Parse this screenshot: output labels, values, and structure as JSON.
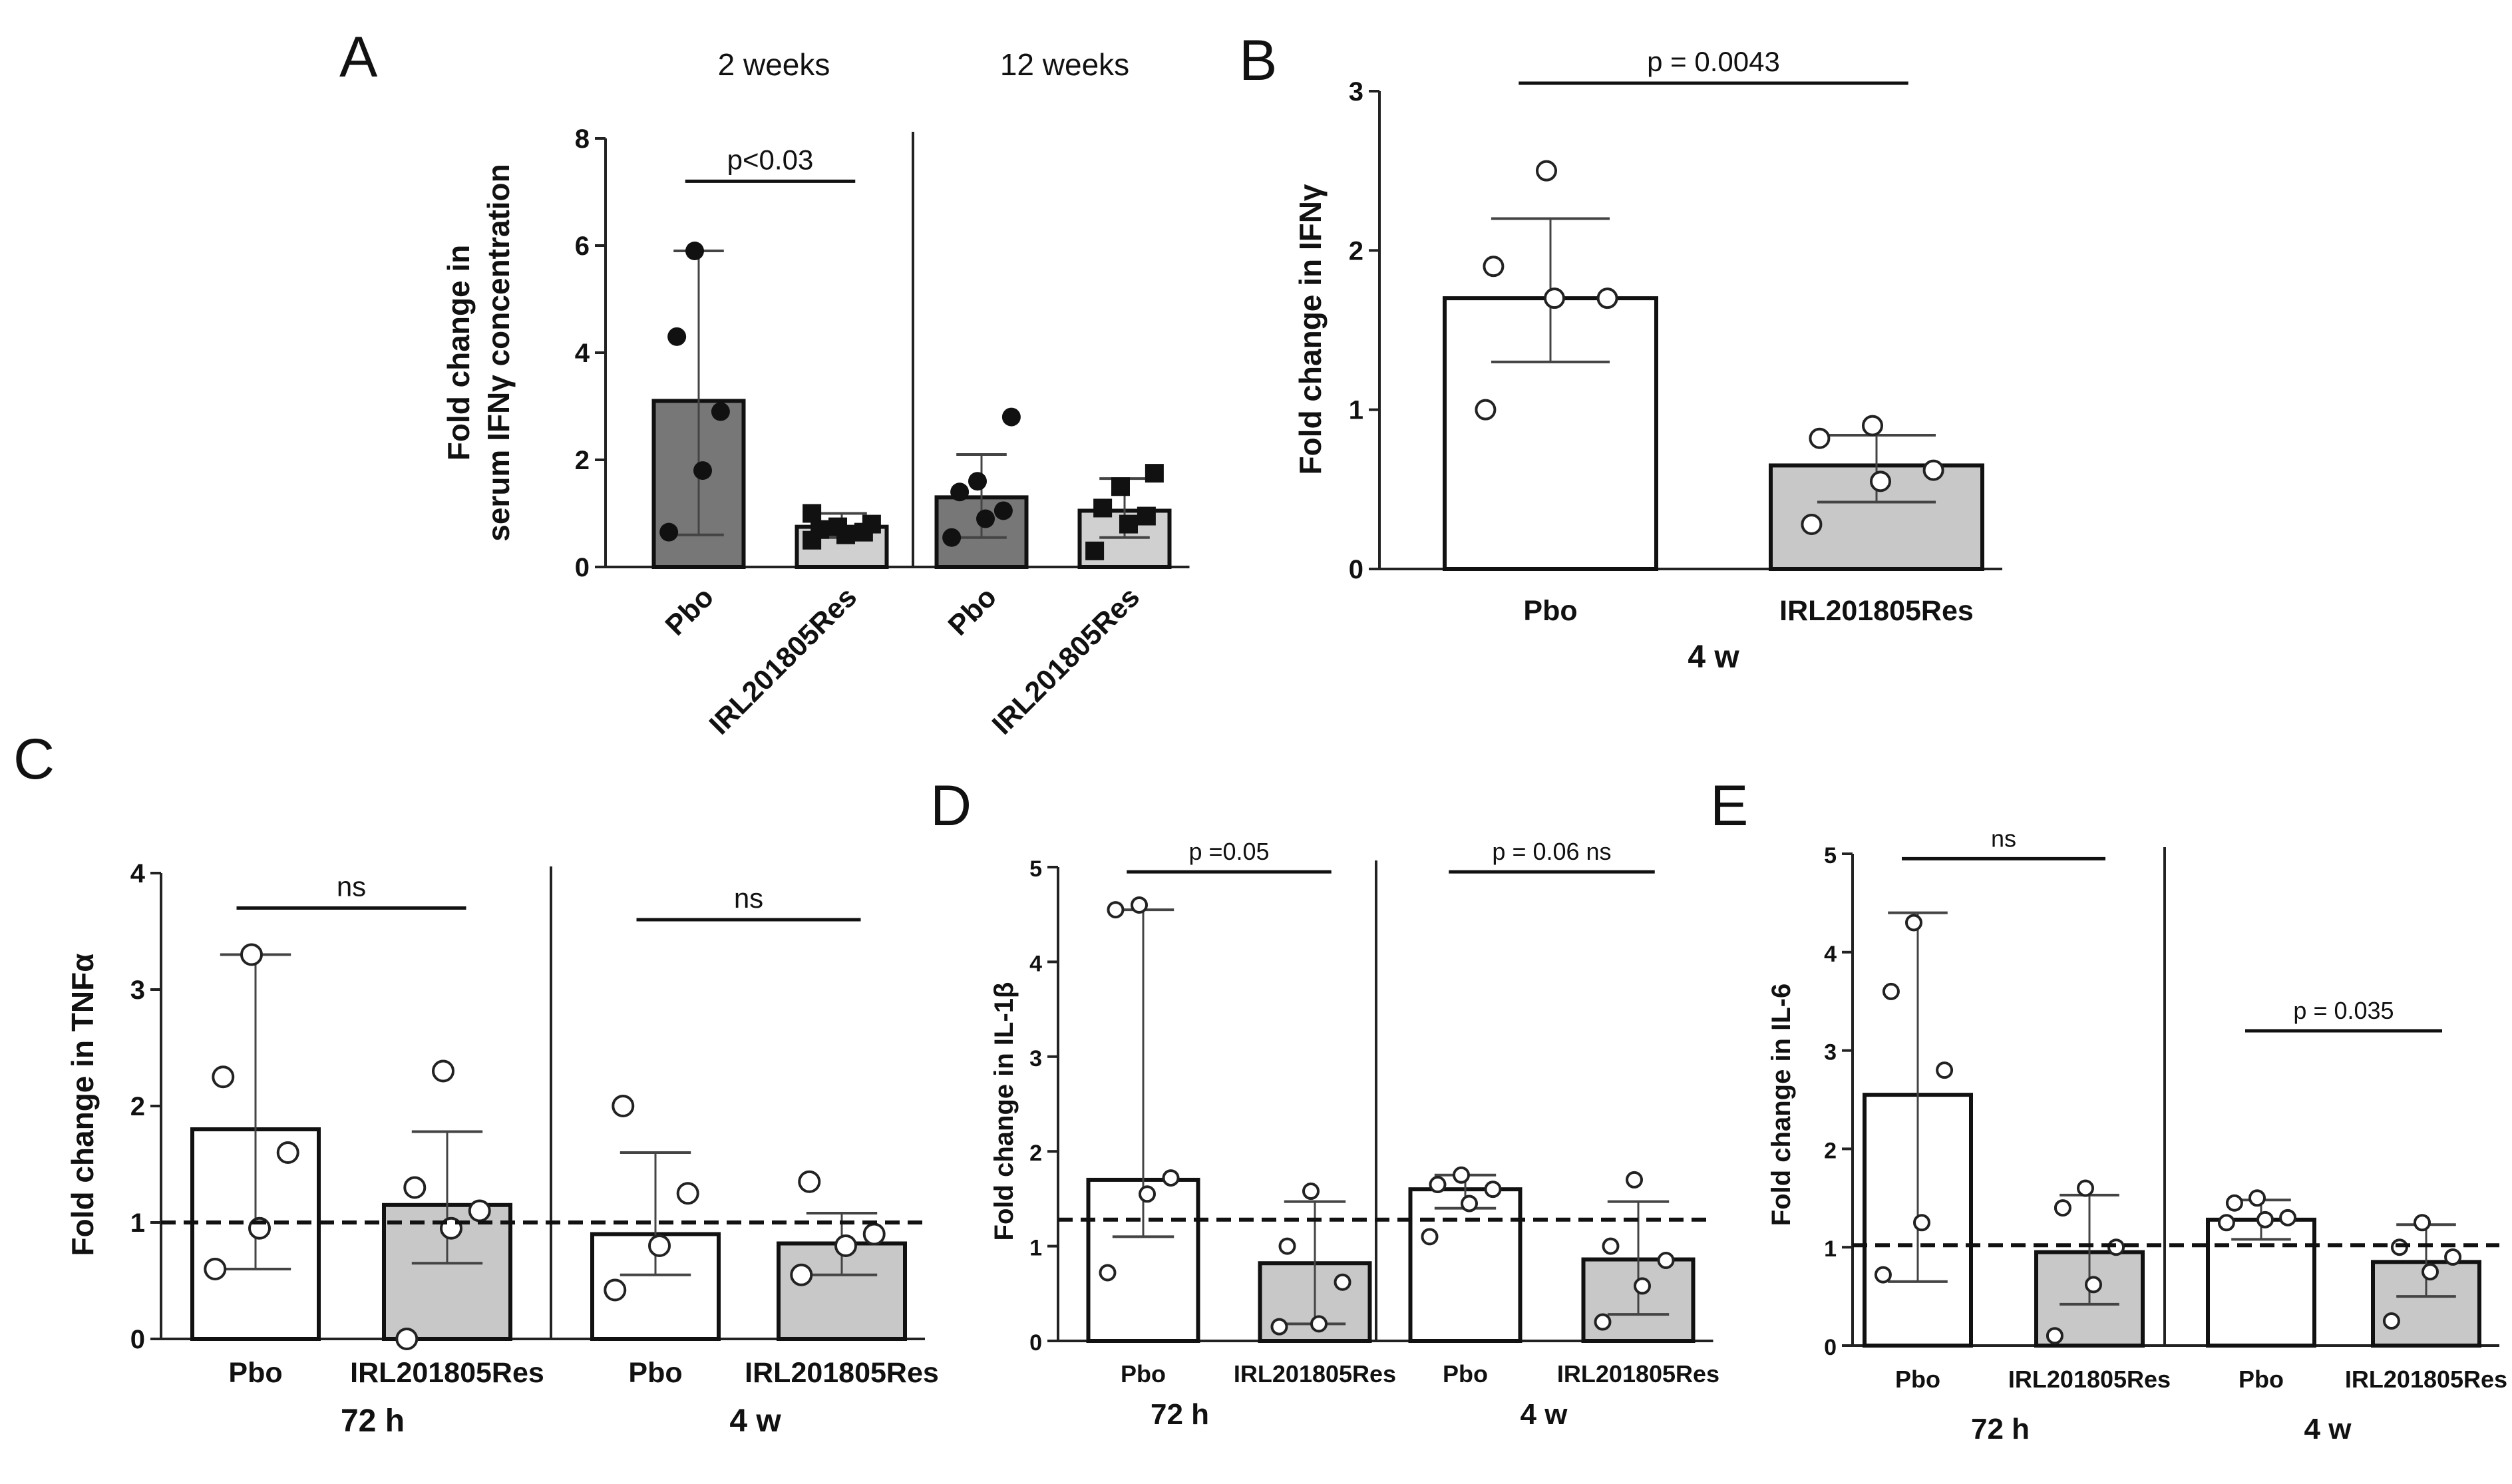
{
  "chart_data": [
    {
      "panel": "A",
      "type": "bar",
      "ylabel": [
        "Fold change in",
        "serum IFNγ concentration"
      ],
      "ylim": [
        0,
        8
      ],
      "yticks": [
        0,
        2,
        4,
        6,
        8
      ],
      "column_headers": [
        "2 weeks",
        "12 weeks"
      ],
      "categories": [
        "Pbo",
        "IRL201805Res",
        "Pbo",
        "IRL201805Res"
      ],
      "bar_colors": [
        "#777777",
        "#d0d0d0",
        "#777777",
        "#d0d0d0"
      ],
      "marker_styles": [
        "filled-circle",
        "filled-square",
        "filled-circle",
        "filled-square"
      ],
      "values": [
        3.1,
        0.75,
        1.3,
        1.05
      ],
      "error_low": [
        0.6,
        0.55,
        0.55,
        0.55
      ],
      "error_high": [
        5.9,
        1.0,
        2.1,
        1.65
      ],
      "points": [
        [
          0.65,
          1.8,
          2.9,
          4.3,
          5.9
        ],
        [
          0.5,
          0.6,
          0.65,
          0.7,
          0.75,
          0.8,
          1.0
        ],
        [
          0.55,
          0.9,
          1.05,
          1.4,
          1.6,
          2.8
        ],
        [
          0.3,
          0.8,
          0.95,
          1.1,
          1.5,
          1.75
        ]
      ],
      "significance": [
        {
          "from": 0,
          "to": 1,
          "label": "p<0.03",
          "y": 7.2
        }
      ],
      "separator_after": 1
    },
    {
      "panel": "B",
      "type": "bar",
      "ylabel": [
        "Fold change in IFNγ"
      ],
      "ylim": [
        0,
        3
      ],
      "yticks": [
        0,
        1,
        2,
        3
      ],
      "categories": [
        "Pbo",
        "IRL201805Res"
      ],
      "group_labels": [
        "4 w"
      ],
      "bar_colors": [
        "#ffffff",
        "#c8c8c8"
      ],
      "marker_styles": [
        "open-circle",
        "open-circle"
      ],
      "values": [
        1.7,
        0.65
      ],
      "error_low": [
        1.3,
        0.42
      ],
      "error_high": [
        2.2,
        0.84
      ],
      "points": [
        [
          1.0,
          1.7,
          1.7,
          1.9,
          2.5
        ],
        [
          0.28,
          0.55,
          0.62,
          0.82,
          0.9
        ]
      ],
      "significance": [
        {
          "from": 0,
          "to": 1,
          "label": "p = 0.0043",
          "y": 3.05
        }
      ]
    },
    {
      "panel": "C",
      "type": "bar",
      "ylabel": [
        "Fold change in TNFα"
      ],
      "ylim": [
        0,
        4
      ],
      "yticks": [
        0,
        1,
        2,
        3,
        4
      ],
      "reference_line": 1,
      "categories": [
        "Pbo",
        "IRL201805Res",
        "Pbo",
        "IRL201805Res"
      ],
      "group_labels": [
        "72 h",
        "4 w"
      ],
      "bar_colors": [
        "#ffffff",
        "#c8c8c8",
        "#ffffff",
        "#c8c8c8"
      ],
      "marker_styles": [
        "open-circle",
        "open-circle",
        "open-circle",
        "open-circle"
      ],
      "values": [
        1.8,
        1.15,
        0.9,
        0.82
      ],
      "error_low": [
        0.6,
        0.65,
        0.55,
        0.55
      ],
      "error_high": [
        3.3,
        1.78,
        1.6,
        1.08
      ],
      "points": [
        [
          0.6,
          0.95,
          1.6,
          2.25,
          3.3
        ],
        [
          0.0,
          0.95,
          1.1,
          1.3,
          2.3
        ],
        [
          0.42,
          0.8,
          1.25,
          2.0
        ],
        [
          0.55,
          0.8,
          0.9,
          1.35
        ]
      ],
      "significance": [
        {
          "from": 0,
          "to": 1,
          "label": "ns",
          "y": 3.7
        },
        {
          "from": 2,
          "to": 3,
          "label": "ns",
          "y": 3.6
        }
      ],
      "separator_after": 1
    },
    {
      "panel": "D",
      "type": "bar",
      "ylabel": [
        "Fold change in IL-1β"
      ],
      "ylim": [
        0,
        5
      ],
      "yticks": [
        0,
        1,
        2,
        3,
        4,
        5
      ],
      "reference_line": 1.28,
      "categories": [
        "Pbo",
        "IRL201805Res",
        "Pbo",
        "IRL201805Res"
      ],
      "group_labels": [
        "72 h",
        "4 w"
      ],
      "bar_colors": [
        "#ffffff",
        "#c8c8c8",
        "#ffffff",
        "#c8c8c8"
      ],
      "marker_styles": [
        "open-circle",
        "open-circle",
        "open-circle",
        "open-circle"
      ],
      "values": [
        1.7,
        0.82,
        1.6,
        0.86
      ],
      "error_low": [
        1.1,
        0.18,
        1.4,
        0.28
      ],
      "error_high": [
        4.55,
        1.47,
        1.75,
        1.47
      ],
      "points": [
        [
          0.72,
          1.55,
          1.72,
          4.55,
          4.6
        ],
        [
          0.15,
          0.18,
          0.62,
          1.0,
          1.58
        ],
        [
          1.1,
          1.45,
          1.6,
          1.65,
          1.75
        ],
        [
          0.2,
          0.58,
          0.85,
          1.0,
          1.7
        ]
      ],
      "significance": [
        {
          "from": 0,
          "to": 1,
          "label": "p =0.05",
          "y": 4.95
        },
        {
          "from": 2,
          "to": 3,
          "label": "p = 0.06 ns",
          "y": 4.95
        }
      ],
      "separator_after": 1
    },
    {
      "panel": "E",
      "type": "bar",
      "ylabel": [
        "Fold change in IL-6"
      ],
      "ylim": [
        0,
        5
      ],
      "yticks": [
        0,
        1,
        2,
        3,
        4,
        5
      ],
      "reference_line": 1.02,
      "categories": [
        "Pbo",
        "IRL201805Res",
        "Pbo",
        "IRL201805Res"
      ],
      "group_labels": [
        "72 h",
        "4 w"
      ],
      "bar_colors": [
        "#ffffff",
        "#c8c8c8",
        "#ffffff",
        "#c8c8c8"
      ],
      "marker_styles": [
        "open-circle",
        "open-circle",
        "open-circle",
        "open-circle"
      ],
      "values": [
        2.55,
        0.95,
        1.28,
        0.85
      ],
      "error_low": [
        0.65,
        0.42,
        1.08,
        0.5
      ],
      "error_high": [
        4.4,
        1.53,
        1.48,
        1.23
      ],
      "points": [
        [
          0.72,
          1.25,
          2.8,
          3.6,
          4.3
        ],
        [
          0.1,
          0.62,
          1.0,
          1.4,
          1.6
        ],
        [
          1.25,
          1.28,
          1.3,
          1.45,
          1.5
        ],
        [
          0.25,
          0.75,
          0.9,
          1.0,
          1.25
        ]
      ],
      "significance": [
        {
          "from": 0,
          "to": 1,
          "label": "ns",
          "y": 4.95
        },
        {
          "from": 2,
          "to": 3,
          "label": "p = 0.035",
          "y": 3.2
        }
      ],
      "separator_after": 1
    }
  ]
}
